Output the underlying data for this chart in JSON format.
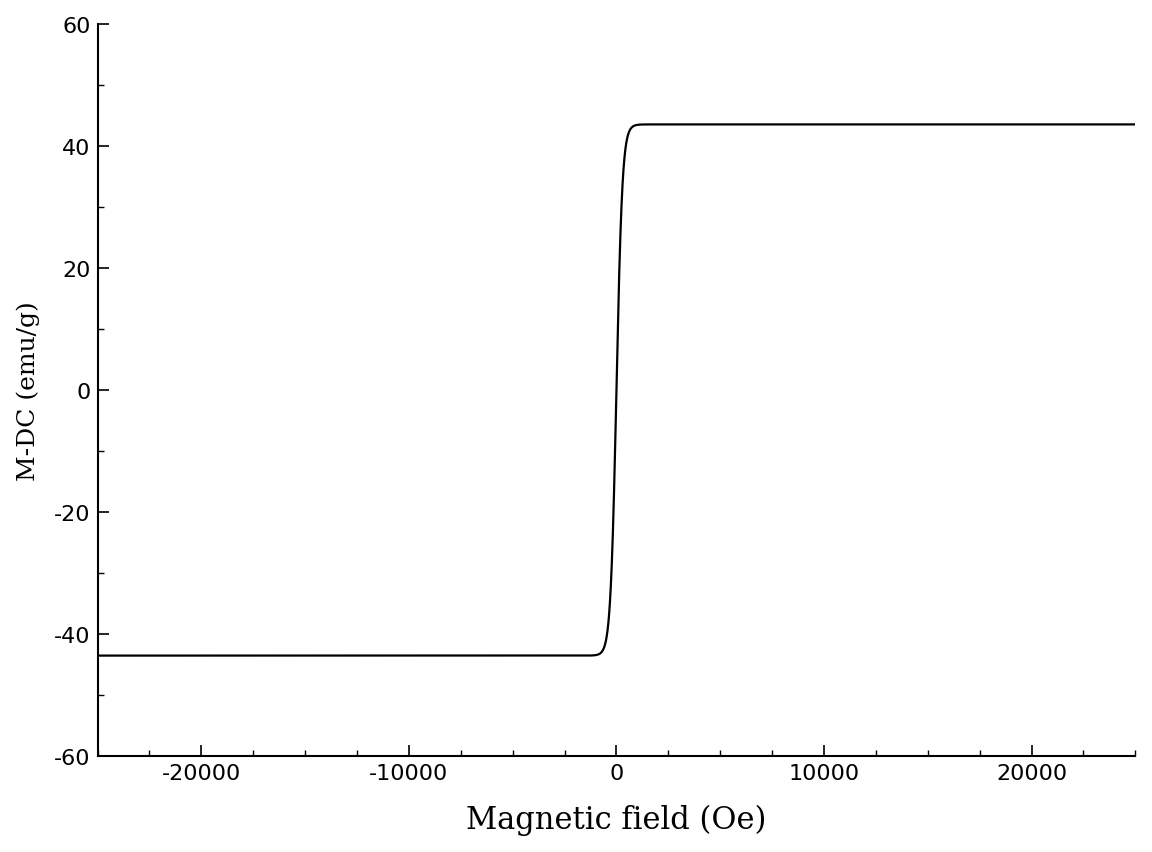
{
  "xlabel": "Magnetic field (Oe)",
  "ylabel": "M-DC (emu/g)",
  "xlim": [
    -25000,
    25000
  ],
  "ylim": [
    -60,
    60
  ],
  "xticks": [
    -20000,
    -10000,
    0,
    10000,
    20000
  ],
  "yticks": [
    -60,
    -40,
    -20,
    0,
    20,
    40,
    60
  ],
  "line_color": "#000000",
  "line_width": 1.6,
  "background_color": "#ffffff",
  "Ms": 43.5,
  "k_factor": 0.0035,
  "xlabel_fontsize": 22,
  "ylabel_fontsize": 18,
  "tick_fontsize": 16
}
